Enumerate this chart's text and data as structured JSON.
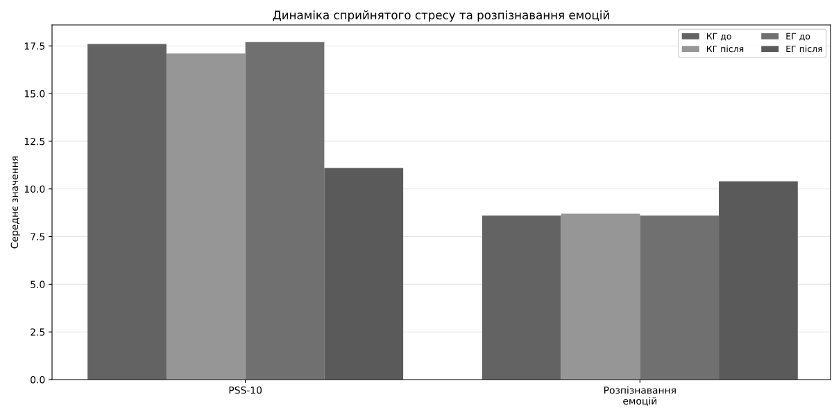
{
  "chart_data": {
    "type": "bar",
    "title": "Динаміка сприйнятого стресу та розпізнавання емоцій",
    "ylabel": "Середнє значення",
    "categories": [
      "PSS-10",
      "Розпізнавання\nемоцій"
    ],
    "series": [
      {
        "name": "КГ до",
        "color": "#636363",
        "values": [
          17.6,
          8.6
        ]
      },
      {
        "name": "КГ після",
        "color": "#969696",
        "values": [
          17.1,
          8.7
        ]
      },
      {
        "name": "ЕГ до",
        "color": "#707070",
        "values": [
          17.7,
          8.6
        ]
      },
      {
        "name": "ЕГ після",
        "color": "#5a5a5a",
        "values": [
          11.1,
          10.4
        ]
      }
    ],
    "ylim": [
      0,
      18.6
    ],
    "yticks": [
      {
        "value": 0,
        "label": "0.0"
      },
      2.5,
      {
        "value": 5,
        "label": "5.0"
      },
      7.5,
      {
        "value": 10,
        "label": "10.0"
      },
      12.5,
      {
        "value": 15,
        "label": "15.0"
      },
      17.5
    ],
    "grid": "y",
    "legend": "top right"
  }
}
